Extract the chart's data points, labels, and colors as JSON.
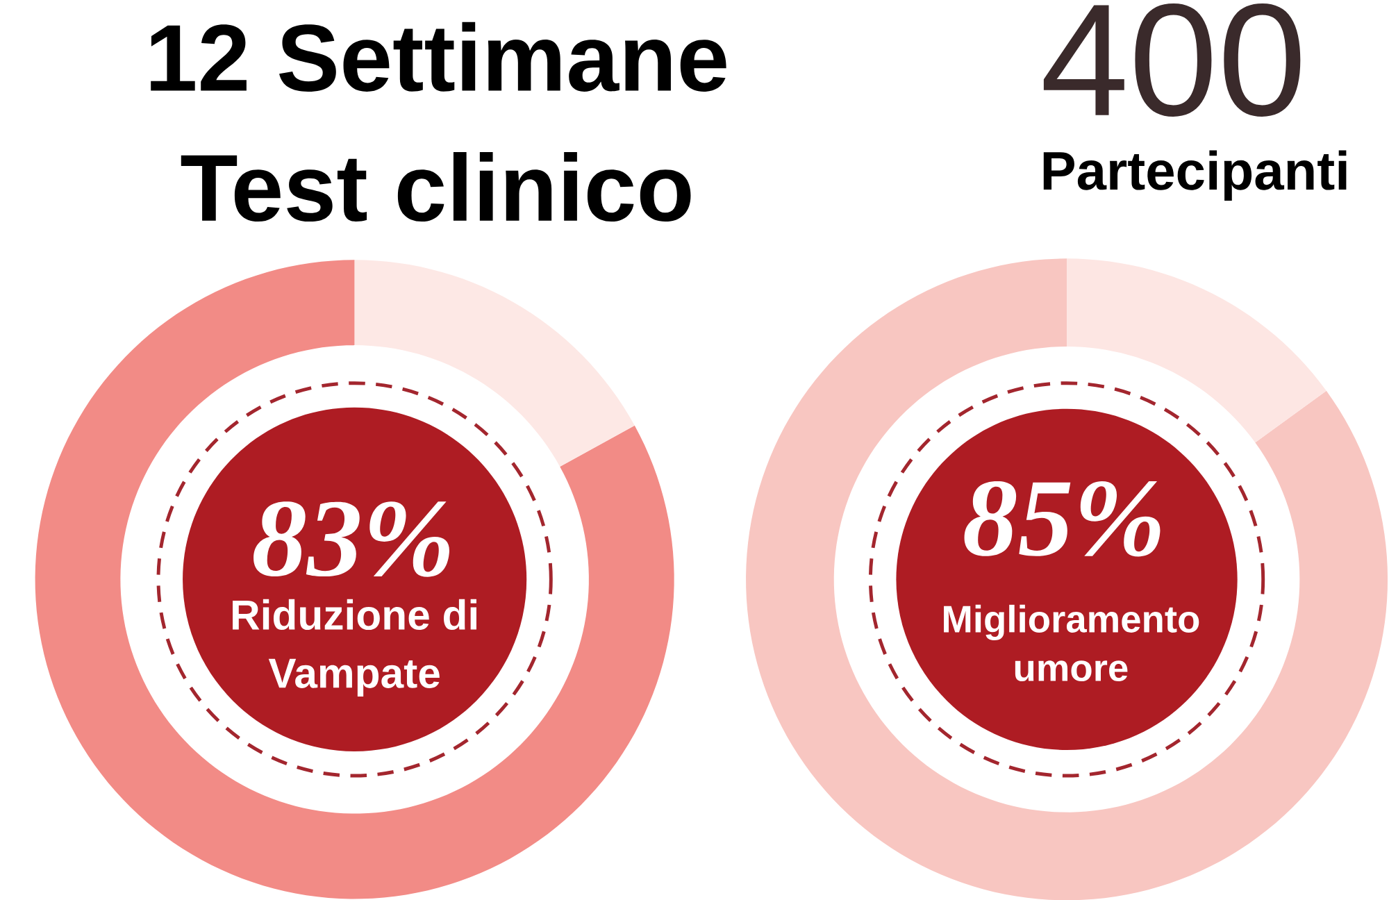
{
  "chart_data": [
    {
      "type": "other",
      "title": "12 Settimane Test clinico",
      "annotations": [
        "400",
        "Partecipanti"
      ]
    },
    {
      "type": "donut",
      "categories": [
        "Riduzione di Vampate",
        null
      ],
      "values": [
        83,
        17
      ],
      "colors": [
        "#f28b86",
        "#fde8e5"
      ],
      "value_labels": [
        "83%",
        null
      ]
    },
    {
      "type": "donut",
      "categories": [
        "Miglioramento umore",
        null
      ],
      "values": [
        85,
        15
      ],
      "colors": [
        "#f8c6c1",
        "#fde6e3"
      ],
      "value_labels": [
        "85%",
        null
      ]
    }
  ]
}
